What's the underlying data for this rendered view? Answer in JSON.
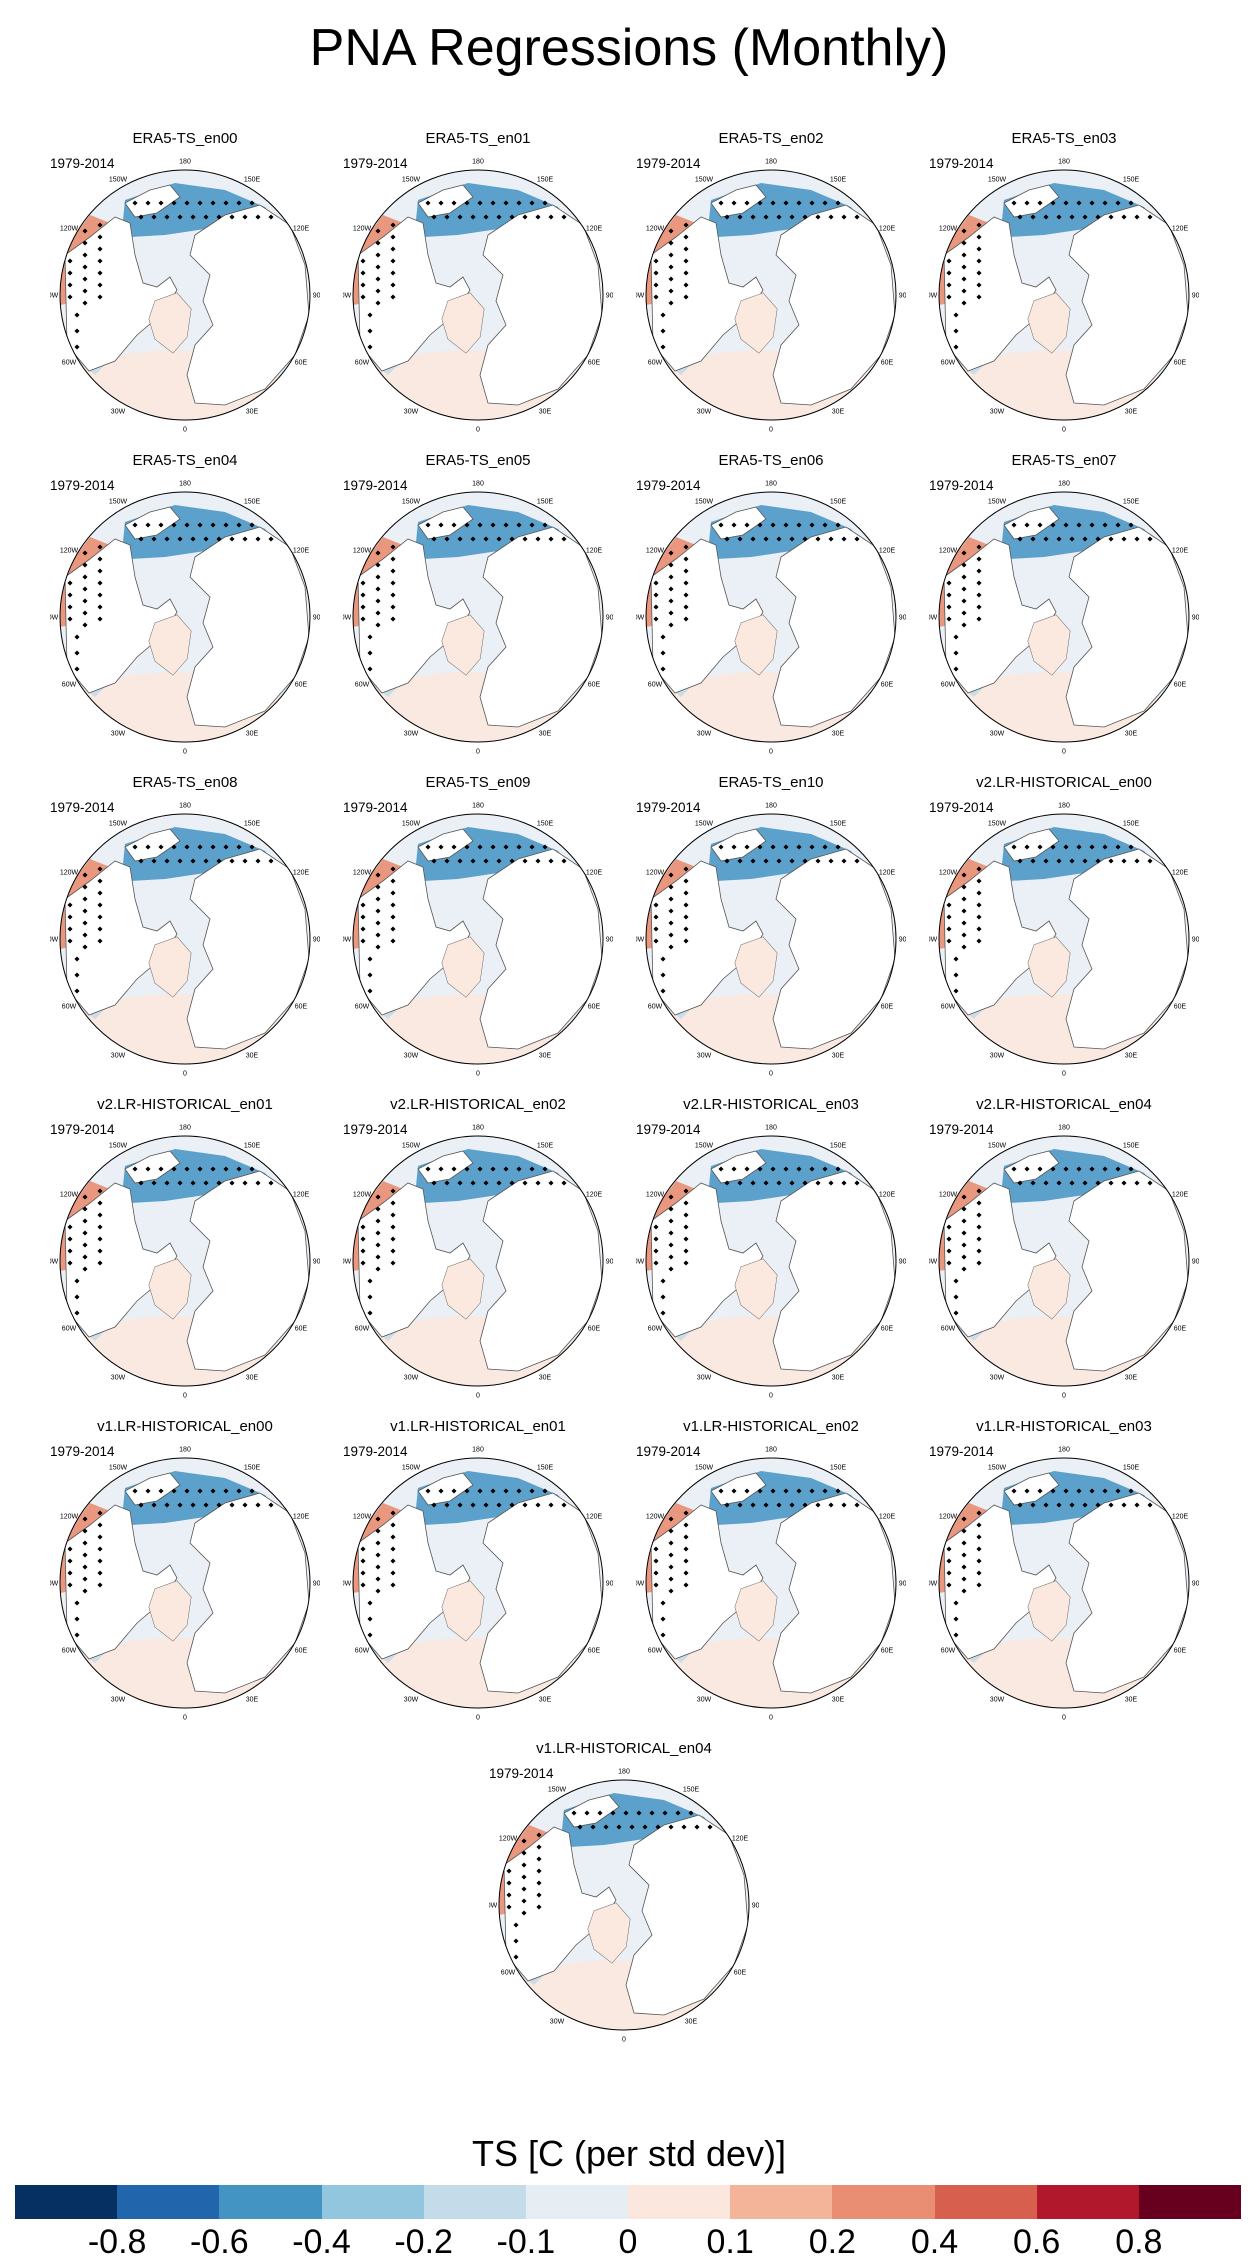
{
  "title": "PNA Regressions (Monthly)",
  "period": "1979-2014",
  "longitude_labels": [
    "180",
    "150E",
    "120E",
    "90E",
    "60E",
    "30E",
    "0",
    "30W",
    "60W",
    "90W",
    "120W",
    "150W"
  ],
  "panels": [
    {
      "title": "ERA5-TS_en00",
      "period": "1979-2014"
    },
    {
      "title": "ERA5-TS_en01",
      "period": "1979-2014"
    },
    {
      "title": "ERA5-TS_en02",
      "period": "1979-2014"
    },
    {
      "title": "ERA5-TS_en03",
      "period": "1979-2014"
    },
    {
      "title": "ERA5-TS_en04",
      "period": "1979-2014"
    },
    {
      "title": "ERA5-TS_en05",
      "period": "1979-2014"
    },
    {
      "title": "ERA5-TS_en06",
      "period": "1979-2014"
    },
    {
      "title": "ERA5-TS_en07",
      "period": "1979-2014"
    },
    {
      "title": "ERA5-TS_en08",
      "period": "1979-2014"
    },
    {
      "title": "ERA5-TS_en09",
      "period": "1979-2014"
    },
    {
      "title": "ERA5-TS_en10",
      "period": "1979-2014"
    },
    {
      "title": "v2.LR-HISTORICAL_en00",
      "period": "1979-2014"
    },
    {
      "title": "v2.LR-HISTORICAL_en01",
      "period": "1979-2014"
    },
    {
      "title": "v2.LR-HISTORICAL_en02",
      "period": "1979-2014"
    },
    {
      "title": "v2.LR-HISTORICAL_en03",
      "period": "1979-2014"
    },
    {
      "title": "v2.LR-HISTORICAL_en04",
      "period": "1979-2014"
    },
    {
      "title": "v1.LR-HISTORICAL_en00",
      "period": "1979-2014"
    },
    {
      "title": "v1.LR-HISTORICAL_en01",
      "period": "1979-2014"
    },
    {
      "title": "v1.LR-HISTORICAL_en02",
      "period": "1979-2014"
    },
    {
      "title": "v1.LR-HISTORICAL_en03",
      "period": "1979-2014"
    },
    {
      "title": "v1.LR-HISTORICAL_en04",
      "period": "1979-2014"
    }
  ],
  "colorbar": {
    "title": "TS [C (per std dev)]",
    "colors": [
      "#053061",
      "#2166ac",
      "#4393c3",
      "#92c5de",
      "#c4dcea",
      "#e6eef4",
      "#fbe7dd",
      "#f4b49a",
      "#e98e72",
      "#d6604d",
      "#b2182b",
      "#67001f"
    ],
    "ticks": [
      "-0.8",
      "-0.6",
      "-0.4",
      "-0.2",
      "-0.1",
      "0",
      "0.1",
      "0.2",
      "0.4",
      "0.6",
      "0.8"
    ]
  },
  "map_colors": {
    "ocean_background": "#eaf0f6",
    "land": "#ffffff",
    "coast": "#555555",
    "warm_anomaly": "#e98e72",
    "cold_anomaly": "#4393c3",
    "stipple": "#000000"
  }
}
